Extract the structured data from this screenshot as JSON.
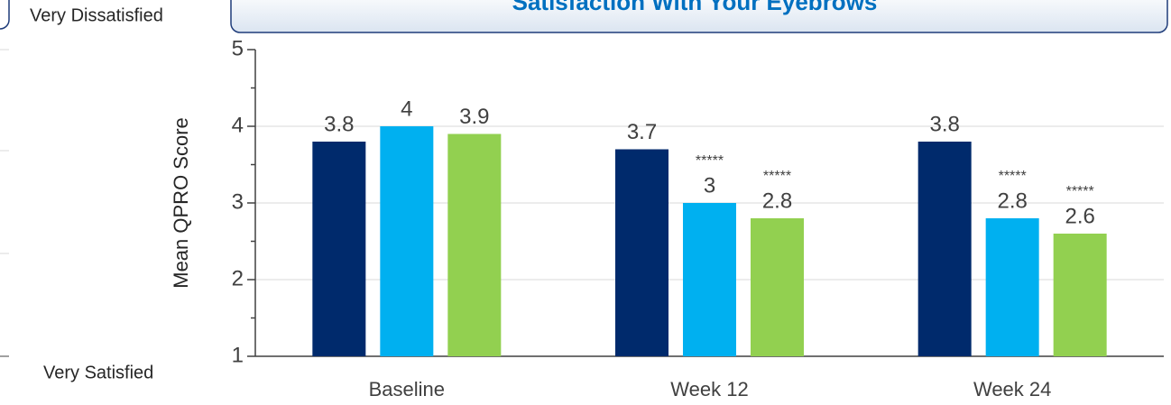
{
  "chart_data": {
    "type": "bar",
    "title": "Satisfaction With Your Eyebrows",
    "y_axis_label": "Mean QPRO Score",
    "top_label": "Very Dissatisfied",
    "bottom_label": "Very Satisfied",
    "categories": [
      "Baseline",
      "Week 12",
      "Week 24"
    ],
    "series": [
      {
        "color": "#002a6c",
        "values": [
          3.8,
          3.7,
          3.8
        ]
      },
      {
        "color": "#00b0f0",
        "values": [
          4,
          3,
          2.8
        ],
        "annotations": [
          null,
          "*****",
          "*****"
        ]
      },
      {
        "color": "#92d050",
        "values": [
          3.9,
          2.8,
          2.6
        ],
        "annotations": [
          null,
          "*****",
          "*****"
        ]
      }
    ],
    "ylim": [
      1,
      5
    ],
    "yticks": [
      1,
      2,
      3,
      4,
      5
    ],
    "grid": true
  }
}
